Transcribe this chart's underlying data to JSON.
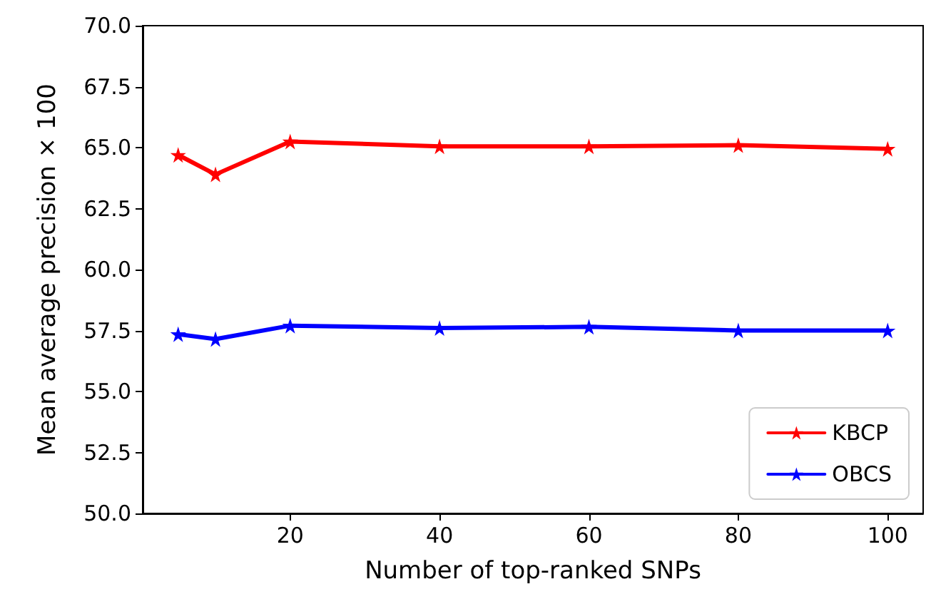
{
  "chart_data": {
    "type": "line",
    "xlabel": "Number of top-ranked SNPs",
    "ylabel": "Mean average precision × 100",
    "x": [
      5,
      10,
      20,
      40,
      60,
      80,
      100
    ],
    "series": [
      {
        "name": "KBCP",
        "color": "#ff0000",
        "values": [
          64.7,
          63.9,
          65.25,
          65.05,
          65.05,
          65.1,
          64.95
        ]
      },
      {
        "name": "OBCS",
        "color": "#0000ff",
        "values": [
          57.35,
          57.15,
          57.7,
          57.6,
          57.65,
          57.5,
          57.5
        ]
      }
    ],
    "xlim": [
      0.25,
      104.75
    ],
    "xticks": [
      20,
      40,
      60,
      80,
      100
    ],
    "ylim": [
      50,
      70
    ],
    "yticks": [
      {
        "value": 50,
        "label": "50.0"
      },
      52.5,
      {
        "value": 55,
        "label": "55.0"
      },
      57.5,
      {
        "value": 60,
        "label": "60.0"
      },
      62.5,
      {
        "value": 65,
        "label": "65.0"
      },
      67.5,
      {
        "value": 70,
        "label": "70.0"
      }
    ],
    "grid": false,
    "legend": "bottom right",
    "marker": "star",
    "line_style": "solid"
  }
}
